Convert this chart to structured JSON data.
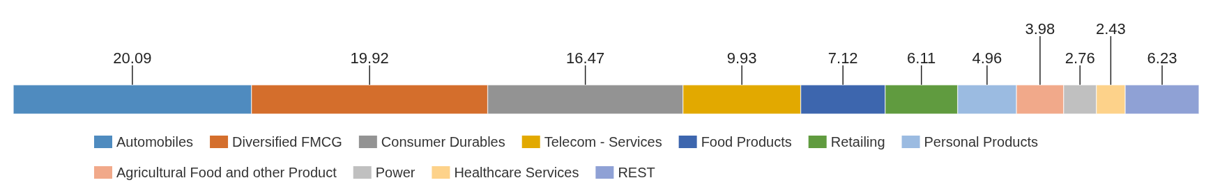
{
  "chart_data": {
    "type": "bar",
    "orientation": "horizontal",
    "stacked": true,
    "categories": [
      null
    ],
    "xlim": [
      0,
      100
    ],
    "tick_labels": false,
    "legend": "bottom",
    "data_labels": true,
    "series": [
      {
        "name": "Automobiles",
        "color": "#4f8bbf",
        "values": [
          20.09
        ]
      },
      {
        "name": "Diversified FMCG",
        "color": "#d46e2c",
        "values": [
          19.92
        ]
      },
      {
        "name": "Consumer Durables",
        "color": "#939393",
        "values": [
          16.47
        ]
      },
      {
        "name": "Telecom - Services",
        "color": "#e2a900",
        "values": [
          9.93
        ]
      },
      {
        "name": "Food Products",
        "color": "#3d66ae",
        "values": [
          7.12
        ]
      },
      {
        "name": "Retailing",
        "color": "#609b3f",
        "values": [
          6.11
        ]
      },
      {
        "name": "Personal Products",
        "color": "#9bbbe1",
        "values": [
          4.96
        ]
      },
      {
        "name": "Agricultural Food and other Product",
        "color": "#f1a98a",
        "values": [
          3.98
        ]
      },
      {
        "name": "Power",
        "color": "#c0c0c0",
        "values": [
          2.76
        ]
      },
      {
        "name": "Healthcare Services",
        "color": "#fdd28a",
        "values": [
          2.43
        ]
      },
      {
        "name": "REST",
        "color": "#8fa1d5",
        "values": [
          6.23
        ]
      }
    ]
  }
}
